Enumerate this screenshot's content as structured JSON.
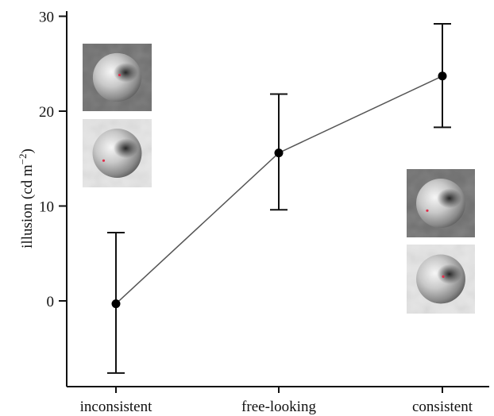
{
  "chart_data": {
    "type": "line",
    "categories": [
      "inconsistent",
      "free-looking",
      "consistent"
    ],
    "values": [
      -0.3,
      15.6,
      23.7
    ],
    "error_low": [
      -7.6,
      9.6,
      18.3
    ],
    "error_high": [
      7.2,
      21.8,
      29.2
    ],
    "ylabel_main": "illusion (cd m",
    "ylabel_exp": "−2",
    "ylabel_close": ")",
    "yticks": [
      0,
      10,
      20,
      30
    ],
    "ylim": [
      -10,
      31
    ],
    "grid": false,
    "legend": "none",
    "colors": {
      "line": "#555555",
      "marker": "#000000",
      "axis": "#111111",
      "light_background": "#e6e6e6",
      "dark_background": "#6e6e6e",
      "disc_highlight": "#f4f4f4",
      "disc_shadow": "#303030",
      "fixation_dot": "#e0304c"
    },
    "insets": [
      {
        "name": "inset-inconsistent-dark-bg-icon",
        "background": "dark",
        "fixation": "on-shadow"
      },
      {
        "name": "inset-inconsistent-light-bg-icon",
        "background": "light",
        "fixation": "off-shadow"
      },
      {
        "name": "inset-consistent-dark-bg-icon",
        "background": "dark",
        "fixation": "off-shadow"
      },
      {
        "name": "inset-consistent-light-bg-icon",
        "background": "light",
        "fixation": "on-shadow"
      }
    ]
  }
}
